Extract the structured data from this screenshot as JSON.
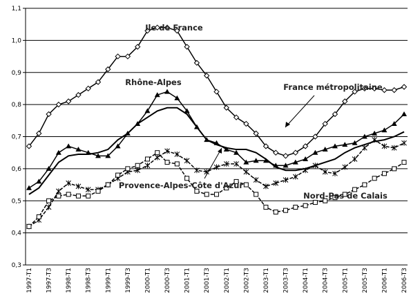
{
  "chart_data": {
    "type": "line",
    "categories": [
      "1997-T1",
      null,
      "1997-T3",
      null,
      "1998-T1",
      null,
      "1998-T3",
      null,
      "1999-T1",
      null,
      "1999-T3",
      null,
      "2000-T1",
      null,
      "2000-T3",
      null,
      "2001-T1",
      null,
      "2001-T3",
      null,
      "2002-T1",
      null,
      "2002-T3",
      null,
      "2003-T1",
      null,
      "2003-T3",
      null,
      "2004-T1",
      null,
      "2004-T3",
      null,
      "2005-T1",
      null,
      "2005-T3",
      null,
      "2006-T1",
      null,
      "2006-T3"
    ],
    "ylim": [
      0.3,
      1.1
    ],
    "yticks": [
      {
        "value": 0.3,
        "label": "0,3"
      },
      {
        "value": 0.4,
        "label": "0,4"
      },
      {
        "value": 0.5,
        "label": "0,5"
      },
      {
        "value": 0.6,
        "label": "0,6"
      },
      {
        "value": 0.7,
        "label": "0,7"
      },
      {
        "value": 0.8,
        "label": "0,8"
      },
      {
        "value": 0.9,
        "label": "0,9"
      },
      {
        "value": 1.0,
        "label": "1,0"
      },
      {
        "value": 1.1,
        "label": "1,1"
      }
    ],
    "grid": true,
    "series": [
      {
        "name": "Ile de France",
        "color": "#000000",
        "marker": "diamond",
        "values": [
          0.67,
          0.71,
          0.77,
          0.8,
          0.81,
          0.83,
          0.85,
          0.87,
          0.91,
          0.95,
          0.95,
          0.98,
          1.03,
          1.04,
          1.04,
          1.03,
          0.98,
          0.93,
          0.89,
          0.84,
          0.79,
          0.76,
          0.74,
          0.71,
          0.67,
          0.65,
          0.64,
          0.65,
          0.67,
          0.7,
          0.74,
          0.77,
          0.81,
          0.84,
          0.85,
          0.85,
          0.845,
          0.845,
          0.855
        ]
      },
      {
        "name": "Rhône-Alpes",
        "color": "#000000",
        "marker": "triangle",
        "values": [
          0.54,
          0.56,
          0.6,
          0.65,
          0.67,
          0.66,
          0.65,
          0.64,
          0.64,
          0.67,
          0.71,
          0.74,
          0.78,
          0.83,
          0.84,
          0.82,
          0.78,
          0.73,
          0.69,
          0.68,
          0.66,
          0.65,
          0.62,
          0.625,
          0.625,
          0.61,
          0.61,
          0.62,
          0.63,
          0.65,
          0.66,
          0.67,
          0.675,
          0.68,
          0.7,
          0.71,
          0.72,
          0.74,
          0.77
        ]
      },
      {
        "name": "France métropolitaine",
        "color": "#000000",
        "marker": "none",
        "values": [
          0.52,
          0.54,
          0.58,
          0.62,
          0.64,
          0.645,
          0.645,
          0.65,
          0.66,
          0.69,
          0.71,
          0.74,
          0.76,
          0.78,
          0.79,
          0.79,
          0.77,
          0.73,
          0.69,
          0.675,
          0.665,
          0.66,
          0.66,
          0.65,
          0.63,
          0.605,
          0.595,
          0.595,
          0.6,
          0.61,
          0.62,
          0.63,
          0.65,
          0.665,
          0.675,
          0.685,
          0.69,
          0.7,
          0.715
        ]
      },
      {
        "name": "Provence-Alpes-Côte d'Azur",
        "color": "#000000",
        "marker": "asterisk",
        "dashed": true,
        "values": [
          0.42,
          0.44,
          0.48,
          0.53,
          0.555,
          0.545,
          0.535,
          0.535,
          0.55,
          0.57,
          0.59,
          0.595,
          0.61,
          0.635,
          0.655,
          0.645,
          0.625,
          0.595,
          0.59,
          0.605,
          0.615,
          0.615,
          0.59,
          0.565,
          0.545,
          0.555,
          0.565,
          0.575,
          0.595,
          0.61,
          0.59,
          0.585,
          0.605,
          0.63,
          0.665,
          0.69,
          0.67,
          0.665,
          0.68
        ]
      },
      {
        "name": "Nord-Pas de Calais",
        "color": "#000000",
        "marker": "square",
        "dashed": true,
        "values": [
          0.42,
          0.45,
          0.5,
          0.515,
          0.52,
          0.515,
          0.515,
          0.53,
          0.55,
          0.58,
          0.6,
          0.61,
          0.63,
          0.65,
          0.62,
          0.615,
          0.57,
          0.53,
          0.52,
          0.52,
          0.54,
          0.56,
          0.55,
          0.52,
          0.48,
          0.465,
          0.47,
          0.48,
          0.485,
          0.495,
          0.5,
          0.51,
          0.52,
          0.535,
          0.55,
          0.57,
          0.585,
          0.6,
          0.62
        ]
      }
    ]
  }
}
